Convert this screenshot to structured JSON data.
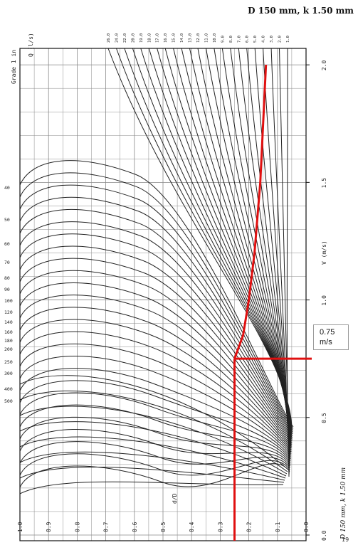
{
  "title": "D 150 mm, k 1.50 mm",
  "side_note": "D 150 mm, k 1.50 mm",
  "side_number": "19",
  "callout": {
    "line1": "0.75",
    "line2": "m/s"
  },
  "colors": {
    "grid": "#8a8a8a",
    "curve": "#222222",
    "highlight": "#e01010",
    "callout_border": "#9a9a9a"
  },
  "chart_data": {
    "type": "line",
    "title": "D 150 mm, k 1.50 mm",
    "orientation": "rotated 90 degrees clockwise",
    "y_axis_left_label": "d/D",
    "y_axis_top_label": "Q (l/s)",
    "x_axis_right_label": "V (m/s)",
    "grade_axis_label": "Grade 1 in",
    "v_ticks": [
      "0.0",
      "0.5",
      "1.0",
      "1.5",
      "2.0"
    ],
    "dD_ticks": [
      "0.0",
      "0.1",
      "0.2",
      "0.3",
      "0.4",
      "0.5",
      "0.6",
      "0.7",
      "0.8",
      "0.9",
      "1.0"
    ],
    "q_ticks": [
      "26.0",
      "24.0",
      "22.0",
      "20.0",
      "19.0",
      "18.0",
      "17.0",
      "16.0",
      "15.0",
      "14.0",
      "13.0",
      "12.0",
      "11.0",
      "10.0",
      "9.0",
      "8.0",
      "7.0",
      "6.0",
      "5.0",
      "4.0",
      "3.0",
      "2.0",
      "1.0"
    ],
    "grade_ticks": [
      "40",
      "50",
      "60",
      "70",
      "80",
      "90",
      "100",
      "120",
      "140",
      "160",
      "180",
      "200",
      "250",
      "300",
      "400",
      "500"
    ],
    "grid": true,
    "v_range": [
      0,
      2.0
    ],
    "dD_range": [
      0,
      1.0
    ],
    "highlight_path": {
      "color": "red",
      "points": [
        {
          "dD": 0.25,
          "v": 0.0
        },
        {
          "dD": 0.25,
          "v": 0.75
        },
        {
          "dD": 0.0,
          "v": 0.75
        },
        {
          "dD": 0.25,
          "v": 0.75
        },
        {
          "dD": 0.22,
          "v": 0.85
        },
        {
          "dD": 0.2,
          "v": 1.0
        },
        {
          "dD": 0.18,
          "v": 1.2
        },
        {
          "dD": 0.16,
          "v": 1.5
        },
        {
          "dD": 0.15,
          "v": 1.75
        },
        {
          "dD": 0.14,
          "v": 2.0
        }
      ]
    },
    "annotation": "0.75 m/s"
  }
}
